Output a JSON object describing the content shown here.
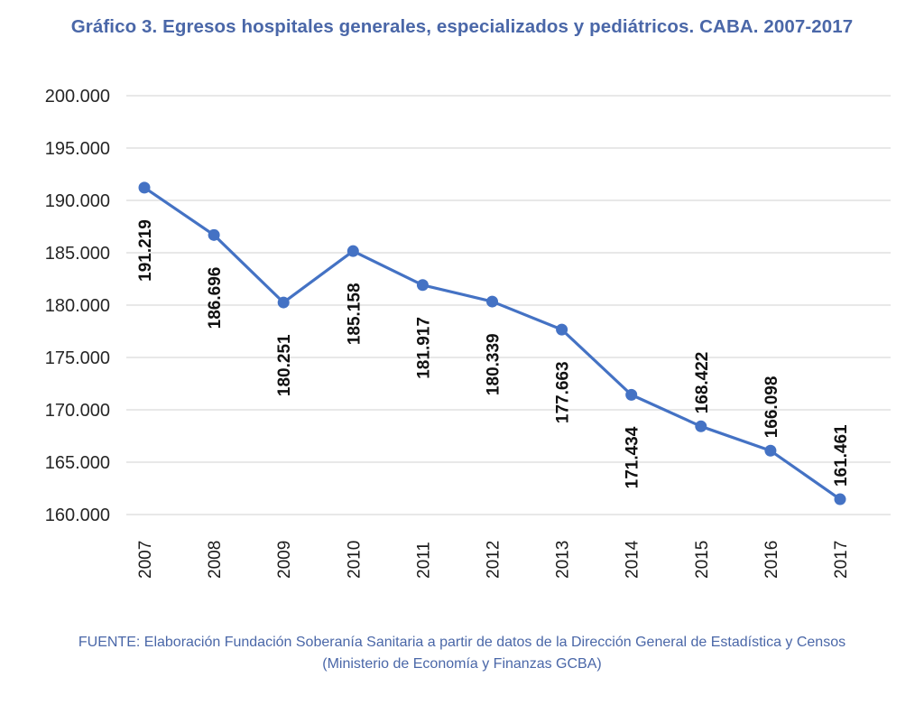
{
  "header": {
    "title": "Gráfico 3. Egresos hospitales generales, especializados y pediátricos. CABA. 2007-2017"
  },
  "footer": {
    "source_line1": "FUENTE: Elaboración Fundación Soberanía Sanitaria a partir de datos de la Dirección General de Estadística y Censos",
    "source_line2": "(Ministerio de Economía y Finanzas GCBA)"
  },
  "colors": {
    "line": "#4472c4",
    "title": "#4a67a8",
    "grid": "#d9d9d9"
  },
  "chart_data": {
    "type": "line",
    "title": "Gráfico 3. Egresos hospitales generales, especializados y pediátricos. CABA. 2007-2017",
    "xlabel": "",
    "ylabel": "",
    "categories": [
      "2007",
      "2008",
      "2009",
      "2010",
      "2011",
      "2012",
      "2013",
      "2014",
      "2015",
      "2016",
      "2017"
    ],
    "series": [
      {
        "name": "Egresos",
        "values": [
          191219,
          186696,
          180251,
          185158,
          181917,
          180339,
          177663,
          171434,
          168422,
          166098,
          161461
        ],
        "labels": [
          "191.219",
          "186.696",
          "180.251",
          "185.158",
          "181.917",
          "180.339",
          "177.663",
          "171.434",
          "168.422",
          "166.098",
          "161.461"
        ],
        "label_position": [
          "below",
          "below",
          "below",
          "below",
          "below",
          "below",
          "below",
          "below",
          "above",
          "above",
          "above"
        ]
      }
    ],
    "ylim": [
      160000,
      200000
    ],
    "yticks": [
      160000,
      165000,
      170000,
      175000,
      180000,
      185000,
      190000,
      195000,
      200000
    ],
    "ytick_labels": [
      "160.000",
      "165.000",
      "170.000",
      "175.000",
      "180.000",
      "185.000",
      "190.000",
      "195.000",
      "200.000"
    ],
    "grid": true,
    "legend": "none"
  }
}
